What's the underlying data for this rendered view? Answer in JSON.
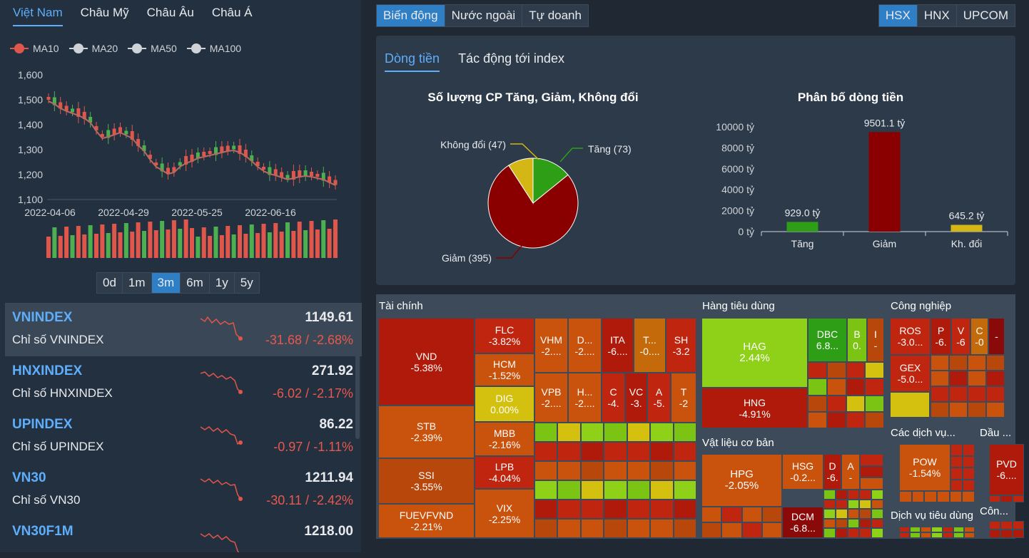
{
  "region_tabs": [
    "Việt Nam",
    "Châu Mỹ",
    "Châu Âu",
    "Châu Á"
  ],
  "legend": [
    {
      "label": "MA10",
      "color": "#e0564a"
    },
    {
      "label": "MA20",
      "color": "#cfd3d8"
    },
    {
      "label": "MA50",
      "color": "#cfd3d8"
    },
    {
      "label": "MA100",
      "color": "#cfd3d8"
    }
  ],
  "price_chart": {
    "yticks": [
      "1,600",
      "1,500",
      "1,400",
      "1,300",
      "1,200",
      "1,100"
    ],
    "xticks": [
      "2022-04-06",
      "2022-04-29",
      "2022-05-25",
      "2022-06-16"
    ]
  },
  "range_buttons": [
    "0d",
    "1m",
    "3m",
    "6m",
    "1y",
    "5y"
  ],
  "indices": [
    {
      "name": "VNINDEX",
      "desc": "Chỉ số VNINDEX",
      "value": "1149.61",
      "change": "-31.68 / -2.68%"
    },
    {
      "name": "HNXINDEX",
      "desc": "Chỉ số HNXINDEX",
      "value": "271.92",
      "change": "-6.02 / -2.17%"
    },
    {
      "name": "UPINDEX",
      "desc": "Chỉ số UPINDEX",
      "value": "86.22",
      "change": "-0.97 / -1.11%"
    },
    {
      "name": "VN30",
      "desc": "Chỉ số VN30",
      "value": "1211.94",
      "change": "-30.11 / -2.42%"
    },
    {
      "name": "VN30F1M",
      "desc": "",
      "value": "1218.00",
      "change": ""
    }
  ],
  "main_tabs": [
    "Biến động",
    "Nước ngoài",
    "Tự doanh"
  ],
  "exchanges": [
    "HSX",
    "HNX",
    "UPCOM"
  ],
  "sub_tabs": [
    "Dòng tiền",
    "Tác động tới index"
  ],
  "pie": {
    "title": "Số lượng CP Tăng, Giảm, Không đổi",
    "labels": {
      "up": "Tăng (73)",
      "down": "Giảm (395)",
      "flat": "Không đổi (47)"
    }
  },
  "chart_data": [
    {
      "type": "pie",
      "title": "Số lượng CP Tăng, Giảm, Không đổi",
      "categories": [
        "Tăng",
        "Giảm",
        "Không đổi"
      ],
      "values": [
        73,
        395,
        47
      ],
      "colors": [
        "#2e9e16",
        "#8a0000",
        "#d4b614"
      ]
    },
    {
      "type": "bar",
      "title": "Phân bố dòng tiền",
      "categories": [
        "Tăng",
        "Giảm",
        "Kh. đổi"
      ],
      "values": [
        929.0,
        9501.1,
        645.2
      ],
      "colors": [
        "#2e9e16",
        "#8a0000",
        "#d4b614"
      ],
      "ylim": [
        0,
        10000
      ],
      "yticks": [
        "0 tỷ",
        "2000 tỷ",
        "4000 tỷ",
        "6000 tỷ",
        "8000 tỷ",
        "10000 tỷ"
      ],
      "value_labels": [
        "929.0 tỷ",
        "9501.1 tỷ",
        "645.2 tỷ"
      ]
    }
  ],
  "treemap": {
    "sections": [
      "Tài chính",
      "Hàng tiêu dùng",
      "Công nghiệp",
      "Vật liệu cơ bản",
      "Các dịch vụ...",
      "Dầu ...",
      "Dịch vụ tiêu dùng",
      "Côn..."
    ],
    "cells": [
      {
        "t": "VND",
        "p": "-5.38%"
      },
      {
        "t": "STB",
        "p": "-2.39%"
      },
      {
        "t": "SSI",
        "p": "-3.55%"
      },
      {
        "t": "FUEVFVND",
        "p": "-2.21%"
      },
      {
        "t": "FLC",
        "p": "-3.82%"
      },
      {
        "t": "HCM",
        "p": "-1.52%"
      },
      {
        "t": "DIG",
        "p": "0.00%"
      },
      {
        "t": "MBB",
        "p": "-2.16%"
      },
      {
        "t": "LPB",
        "p": "-4.04%"
      },
      {
        "t": "VIX",
        "p": "-2.25%"
      },
      {
        "t": "VHM",
        "p": "-2...."
      },
      {
        "t": "D...",
        "p": "-2...."
      },
      {
        "t": "ITA",
        "p": "-6...."
      },
      {
        "t": "T...",
        "p": "-0...."
      },
      {
        "t": "SH",
        "p": "-3.2"
      },
      {
        "t": "VPB",
        "p": "-2...."
      },
      {
        "t": "H...",
        "p": "-2...."
      },
      {
        "t": "C",
        "p": "-4."
      },
      {
        "t": "VC",
        "p": "-3."
      },
      {
        "t": "A",
        "p": "-5."
      },
      {
        "t": "T",
        "p": "-2"
      },
      {
        "t": "HAG",
        "p": "2.44%"
      },
      {
        "t": "HNG",
        "p": "-4.91%"
      },
      {
        "t": "DBC",
        "p": "6.8..."
      },
      {
        "t": "B",
        "p": "0."
      },
      {
        "t": "I",
        "p": "-"
      },
      {
        "t": "ROS",
        "p": "-3.0..."
      },
      {
        "t": "P",
        "p": "-6."
      },
      {
        "t": "V",
        "p": "-6"
      },
      {
        "t": "C",
        "p": "-0"
      },
      {
        "t": "",
        "p": "-"
      },
      {
        "t": "GEX",
        "p": "-5.0..."
      },
      {
        "t": "HPG",
        "p": "-2.05%"
      },
      {
        "t": "HSG",
        "p": "-0.2..."
      },
      {
        "t": "D",
        "p": "-6."
      },
      {
        "t": "A",
        "p": "-"
      },
      {
        "t": "DCM",
        "p": "-6.8..."
      },
      {
        "t": "POW",
        "p": "-1.54%"
      },
      {
        "t": "PVD",
        "p": "-6...."
      }
    ]
  }
}
